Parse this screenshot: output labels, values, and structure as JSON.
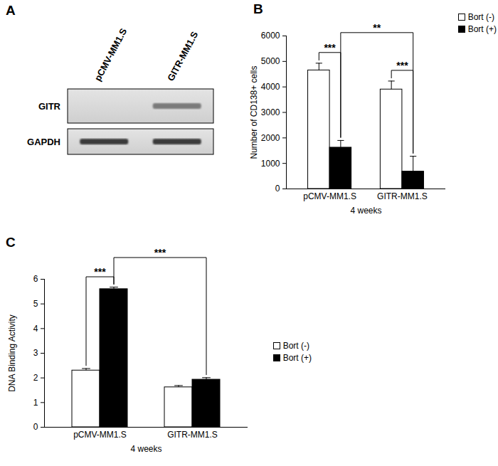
{
  "panel_labels": [
    "A",
    "B",
    "C"
  ],
  "gel": {
    "lanes": [
      "pCMV-MM1.S",
      "GITR-MM1.S"
    ],
    "rows": [
      {
        "name": "GITR",
        "bands": [
          false,
          true
        ]
      },
      {
        "name": "GAPDH",
        "bands": [
          true,
          true
        ]
      }
    ]
  },
  "chart_data": [
    {
      "type": "bar",
      "ylabel": "Number of CD138+ cells",
      "xlabel": "4 weeks",
      "categories": [
        "pCMV-MM1.S",
        "GITR-MM1.S"
      ],
      "series": [
        {
          "name": "Bort (-)",
          "color": "#ffffff",
          "values": [
            4650,
            3900
          ],
          "errors": [
            280,
            330
          ]
        },
        {
          "name": "Bort (+)",
          "color": "#000000",
          "values": [
            1620,
            680
          ],
          "errors": [
            280,
            600
          ]
        }
      ],
      "ylim": [
        0,
        6000
      ],
      "yticks": [
        0,
        1000,
        2000,
        3000,
        4000,
        5000,
        6000
      ],
      "grid": false,
      "legend": "top-right",
      "annotations": [
        {
          "text": "***",
          "from": {
            "category": "pCMV-MM1.S",
            "series": "Bort (-)"
          },
          "to": {
            "category": "pCMV-MM1.S",
            "series": "Bort (+)"
          }
        },
        {
          "text": "***",
          "from": {
            "category": "GITR-MM1.S",
            "series": "Bort (-)"
          },
          "to": {
            "category": "GITR-MM1.S",
            "series": "Bort (+)"
          }
        },
        {
          "text": "**",
          "from": {
            "category": "pCMV-MM1.S",
            "series": "Bort (+)"
          },
          "to": {
            "category": "GITR-MM1.S",
            "series": "Bort (+)"
          }
        }
      ]
    },
    {
      "type": "bar",
      "ylabel": "DNA Binding Activity",
      "xlabel": "4 weeks",
      "categories": [
        "pCMV-MM1.S",
        "GITR-MM1.S"
      ],
      "series": [
        {
          "name": "Bort (-)",
          "color": "#ffffff",
          "values": [
            2.3,
            1.62
          ],
          "errors": [
            0.08,
            0.07
          ]
        },
        {
          "name": "Bort (+)",
          "color": "#000000",
          "values": [
            5.6,
            1.93
          ],
          "errors": [
            0.08,
            0.08
          ]
        }
      ],
      "ylim": [
        0,
        6
      ],
      "yticks": [
        0,
        1,
        2,
        3,
        4,
        5,
        6
      ],
      "grid": false,
      "legend": "right",
      "annotations": [
        {
          "text": "***",
          "from": {
            "category": "pCMV-MM1.S",
            "series": "Bort (-)"
          },
          "to": {
            "category": "pCMV-MM1.S",
            "series": "Bort (+)"
          }
        },
        {
          "text": "***",
          "from": {
            "category": "pCMV-MM1.S",
            "series": "Bort (+)"
          },
          "to": {
            "category": "GITR-MM1.S",
            "series": "Bort (+)"
          }
        }
      ]
    }
  ]
}
